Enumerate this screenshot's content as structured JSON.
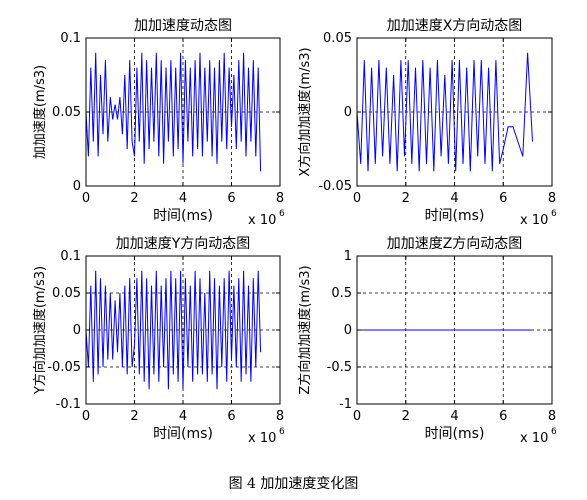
{
  "caption": "图 4  加加速度变化图",
  "chart_data": [
    {
      "type": "line",
      "title": "加加速度动态图",
      "xlabel": "时间(ms)",
      "ylabel": "加加速度(m/s3)",
      "x_exponent": "x 10",
      "x_exponent_power": "6",
      "xlim": [
        0,
        8
      ],
      "ylim": [
        0,
        0.1
      ],
      "xticks": [
        0,
        2,
        4,
        6,
        8
      ],
      "xtick_labels": [
        "0",
        "2",
        "4",
        "6",
        "8"
      ],
      "yticks": [
        0,
        0.05,
        0.1
      ],
      "ytick_labels": [
        "0",
        "0.05",
        "0.1"
      ],
      "grid": true,
      "grid_style": "dashed",
      "line_color": "#0000ff",
      "series": [
        {
          "x": [
            0,
            0.1,
            0.2,
            0.3,
            0.4,
            0.5,
            0.6,
            0.7,
            0.8,
            0.9,
            1.0,
            1.1,
            1.2,
            1.3,
            1.4,
            1.5,
            1.6,
            1.7,
            1.8,
            1.9,
            2.0,
            2.1,
            2.2,
            2.3,
            2.4,
            2.5,
            2.6,
            2.7,
            2.8,
            2.9,
            3.0,
            3.1,
            3.2,
            3.3,
            3.4,
            3.5,
            3.6,
            3.7,
            3.8,
            3.9,
            4.0,
            4.1,
            4.2,
            4.3,
            4.4,
            4.5,
            4.6,
            4.7,
            4.8,
            4.9,
            5.0,
            5.1,
            5.2,
            5.3,
            5.4,
            5.5,
            5.6,
            5.7,
            5.8,
            5.9,
            6.0,
            6.1,
            6.2,
            6.3,
            6.4,
            6.5,
            6.6,
            6.7,
            6.8,
            6.9,
            7.0,
            7.1,
            7.2
          ],
          "values": [
            0.05,
            0.02,
            0.08,
            0.03,
            0.09,
            0.02,
            0.075,
            0.035,
            0.085,
            0.03,
            0.06,
            0.045,
            0.055,
            0.045,
            0.06,
            0.035,
            0.075,
            0.025,
            0.085,
            0.03,
            0.02,
            0.08,
            0.03,
            0.09,
            0.015,
            0.085,
            0.025,
            0.08,
            0.03,
            0.09,
            0.02,
            0.085,
            0.015,
            0.08,
            0.03,
            0.085,
            0.02,
            0.08,
            0.025,
            0.09,
            0.015,
            0.085,
            0.03,
            0.08,
            0.02,
            0.085,
            0.025,
            0.09,
            0.02,
            0.08,
            0.03,
            0.085,
            0.02,
            0.08,
            0.015,
            0.085,
            0.03,
            0.09,
            0.025,
            0.08,
            0.04,
            0.075,
            0.025,
            0.085,
            0.03,
            0.09,
            0.02,
            0.08,
            0.03,
            0.085,
            0.02,
            0.08,
            0.01
          ]
        }
      ]
    },
    {
      "type": "line",
      "title": "加加速度X方向动态图",
      "xlabel": "时间(ms)",
      "ylabel": "X方向加加速度(m/s3)",
      "x_exponent": "x 10",
      "x_exponent_power": "6",
      "xlim": [
        0,
        8
      ],
      "ylim": [
        -0.05,
        0.05
      ],
      "xticks": [
        0,
        2,
        4,
        6,
        8
      ],
      "xtick_labels": [
        "0",
        "2",
        "4",
        "6",
        "8"
      ],
      "yticks": [
        -0.05,
        0,
        0.05
      ],
      "ytick_labels": [
        "-0.05",
        "0",
        "0.05"
      ],
      "grid": true,
      "grid_style": "dashed",
      "line_color": "#0000ff",
      "series": [
        {
          "x": [
            0,
            0.15,
            0.3,
            0.45,
            0.6,
            0.75,
            0.9,
            1.05,
            1.2,
            1.35,
            1.5,
            1.65,
            1.8,
            1.95,
            2.1,
            2.25,
            2.4,
            2.55,
            2.7,
            2.85,
            3.0,
            3.15,
            3.3,
            3.45,
            3.6,
            3.75,
            3.9,
            4.05,
            4.2,
            4.35,
            4.5,
            4.65,
            4.8,
            4.95,
            5.1,
            5.25,
            5.4,
            5.55,
            5.7,
            5.85,
            6.0,
            6.2,
            6.4,
            6.6,
            6.8,
            7.0,
            7.2
          ],
          "values": [
            0.0,
            -0.035,
            0.035,
            -0.04,
            0.03,
            -0.035,
            0.035,
            -0.03,
            0.03,
            -0.035,
            0.025,
            -0.04,
            0.035,
            -0.03,
            0.035,
            -0.035,
            0.03,
            -0.04,
            0.035,
            -0.035,
            0.03,
            -0.04,
            0.035,
            -0.03,
            0.025,
            -0.035,
            0.035,
            -0.04,
            0.035,
            -0.035,
            0.03,
            -0.04,
            0.035,
            -0.03,
            0.035,
            -0.035,
            0.03,
            -0.04,
            0.035,
            -0.035,
            -0.025,
            -0.01,
            -0.01,
            -0.02,
            -0.03,
            0.04,
            -0.02
          ]
        }
      ]
    },
    {
      "type": "line",
      "title": "加加速度Y方向动态图",
      "xlabel": "时间(ms)",
      "ylabel": "Y方向加加速度(m/s3)",
      "x_exponent": "x 10",
      "x_exponent_power": "6",
      "xlim": [
        0,
        8
      ],
      "ylim": [
        -0.1,
        0.1
      ],
      "xticks": [
        0,
        2,
        4,
        6,
        8
      ],
      "xtick_labels": [
        "0",
        "2",
        "4",
        "6",
        "8"
      ],
      "yticks": [
        -0.1,
        -0.05,
        0,
        0.05,
        0.1
      ],
      "ytick_labels": [
        "-0.1",
        "-0.05",
        "0",
        "0.05",
        "0.1"
      ],
      "grid": true,
      "grid_style": "dashed",
      "line_color": "#0000ff",
      "series": [
        {
          "x": [
            0,
            0.1,
            0.2,
            0.3,
            0.4,
            0.5,
            0.6,
            0.7,
            0.8,
            0.9,
            1.0,
            1.1,
            1.2,
            1.3,
            1.4,
            1.5,
            1.6,
            1.7,
            1.8,
            1.9,
            2.0,
            2.1,
            2.2,
            2.3,
            2.4,
            2.5,
            2.6,
            2.7,
            2.8,
            2.9,
            3.0,
            3.1,
            3.2,
            3.3,
            3.4,
            3.5,
            3.6,
            3.7,
            3.8,
            3.9,
            4.0,
            4.1,
            4.2,
            4.3,
            4.4,
            4.5,
            4.6,
            4.7,
            4.8,
            4.9,
            5.0,
            5.1,
            5.2,
            5.3,
            5.4,
            5.5,
            5.6,
            5.7,
            5.8,
            5.9,
            6.0,
            6.1,
            6.2,
            6.3,
            6.4,
            6.5,
            6.6,
            6.7,
            6.8,
            6.9,
            7.0,
            7.1,
            7.2
          ],
          "values": [
            0.0,
            -0.05,
            0.06,
            -0.07,
            0.08,
            -0.06,
            0.07,
            -0.05,
            0.06,
            -0.04,
            0.05,
            -0.04,
            0.04,
            -0.03,
            0.05,
            -0.05,
            0.06,
            -0.06,
            0.07,
            -0.05,
            -0.02,
            0.07,
            -0.06,
            0.08,
            -0.07,
            0.07,
            -0.08,
            0.06,
            -0.06,
            0.08,
            -0.07,
            0.06,
            -0.05,
            0.07,
            -0.08,
            0.08,
            -0.06,
            0.07,
            -0.07,
            0.08,
            -0.08,
            0.07,
            -0.05,
            0.06,
            -0.07,
            0.08,
            -0.06,
            0.07,
            -0.06,
            0.05,
            -0.07,
            0.08,
            -0.06,
            0.07,
            -0.08,
            0.06,
            -0.05,
            0.07,
            -0.07,
            0.08,
            -0.04,
            0.06,
            -0.05,
            0.07,
            -0.07,
            0.08,
            -0.06,
            0.06,
            -0.07,
            0.07,
            -0.05,
            0.08,
            -0.03
          ]
        }
      ]
    },
    {
      "type": "line",
      "title": "加加速度Z方向动态图",
      "xlabel": "时间(ms)",
      "ylabel": "Z方向加加速度(m/s3)",
      "x_exponent": "x 10",
      "x_exponent_power": "6",
      "xlim": [
        0,
        8
      ],
      "ylim": [
        -1,
        1
      ],
      "xticks": [
        0,
        2,
        4,
        6,
        8
      ],
      "xtick_labels": [
        "0",
        "2",
        "4",
        "6",
        "8"
      ],
      "yticks": [
        -1,
        -0.5,
        0,
        0.5,
        1
      ],
      "ytick_labels": [
        "-1",
        "-0.5",
        "0",
        "0.5",
        "1"
      ],
      "grid": true,
      "grid_style": "dashed",
      "line_color": "#0000ff",
      "series": [
        {
          "x": [
            0,
            7.2
          ],
          "values": [
            0,
            0
          ]
        }
      ]
    }
  ]
}
